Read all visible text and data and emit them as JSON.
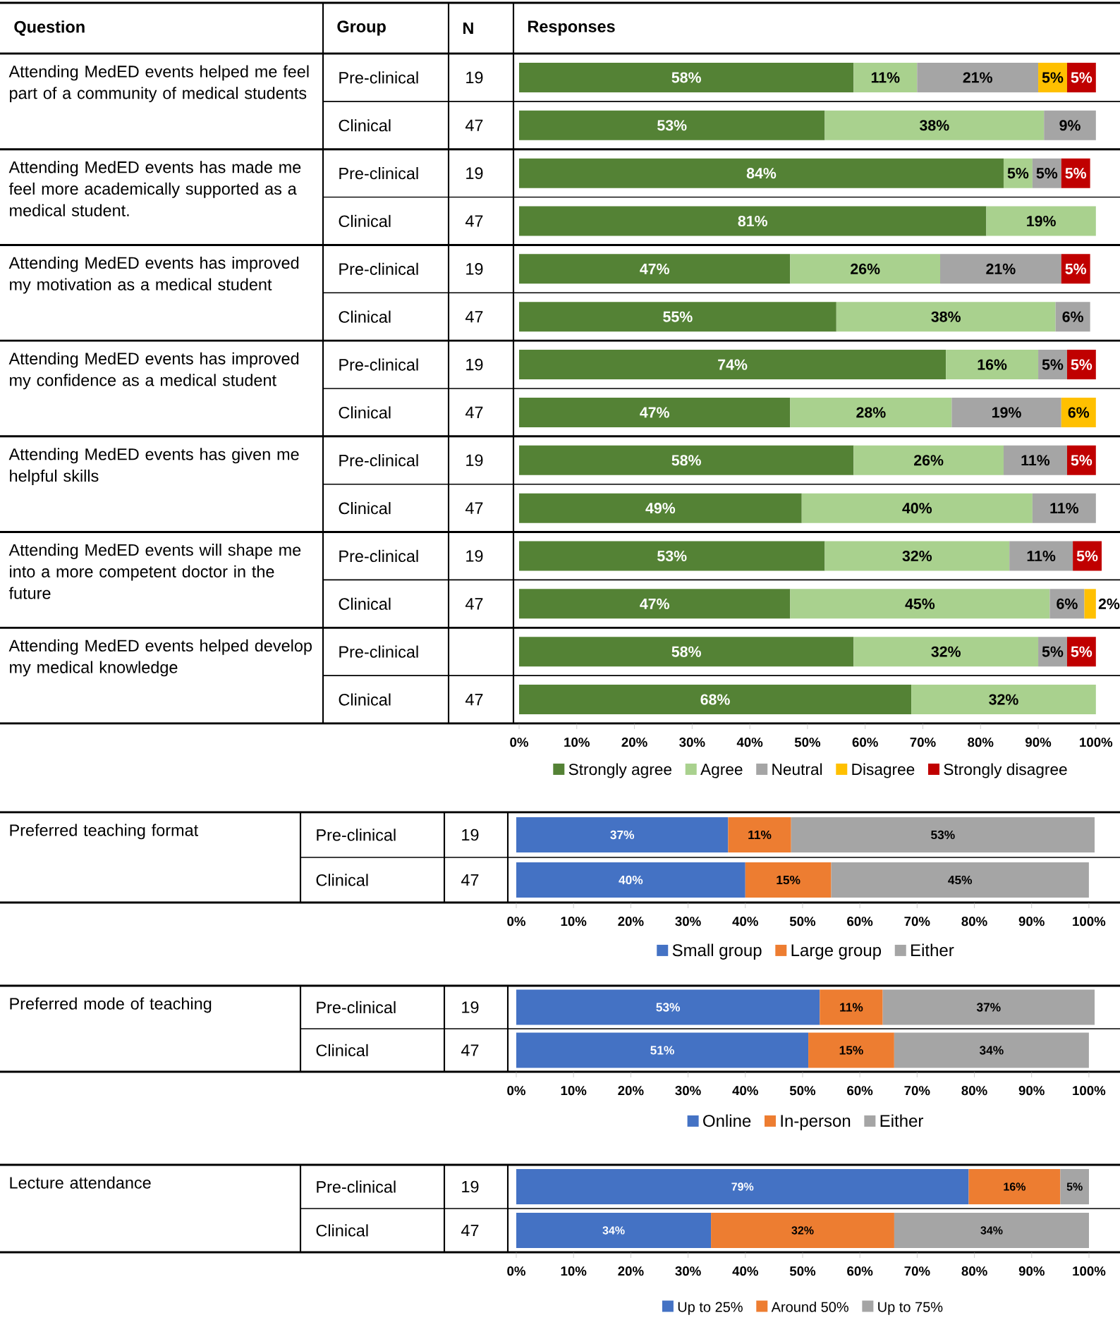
{
  "chart_data": [
    {
      "type": "bar",
      "orientation": "horizontal",
      "stacked": true,
      "legend": "bottom",
      "xlim": [
        0,
        101
      ],
      "xticks": [
        {
          "value": 0,
          "label": "0%"
        },
        {
          "value": 10,
          "label": "10%"
        },
        {
          "value": 20,
          "label": "20%"
        },
        {
          "value": 30,
          "label": "30%"
        },
        {
          "value": 40,
          "label": "40%"
        },
        {
          "value": 50,
          "label": "50%"
        },
        {
          "value": 60,
          "label": "60%"
        },
        {
          "value": 70,
          "label": "70%"
        },
        {
          "value": 80,
          "label": "80%"
        },
        {
          "value": 90,
          "label": "90%"
        },
        {
          "value": 100,
          "label": "100%"
        }
      ],
      "categories": [
        "Pre-clinical",
        "Clinical",
        "Pre-clinical",
        "Clinical",
        "Pre-clinical",
        "Clinical",
        "Pre-clinical",
        "Clinical",
        "Pre-clinical",
        "Clinical",
        "Pre-clinical",
        "Clinical",
        "Pre-clinical",
        "Clinical"
      ],
      "annotations": [
        "Question",
        "Group",
        "N",
        "Responses",
        "Attending MedED events helped me feel part of a community of medical students",
        "Attending MedED events has made me feel more academically supported as a medical student.",
        "Attending MedED events has improved my motivation as a medical student",
        "Attending MedED events has improved my confidence as a medical student",
        "Attending MedED events has given me helpful skills",
        "Attending MedED events will shape me into a more competent doctor in the future",
        "Attending MedED events helped develop my medical knowledge",
        "19",
        "47",
        "19",
        "47",
        "19",
        "47",
        "19",
        "47",
        "19",
        "47",
        "19",
        "47",
        null,
        "47"
      ],
      "series": [
        {
          "name": "Strongly agree",
          "color": "#548235",
          "values": [
            58,
            53,
            84,
            81,
            47,
            55,
            74,
            47,
            58,
            49,
            53,
            47,
            58,
            68
          ],
          "value_labels": [
            "58%",
            "53%",
            "84%",
            "81%",
            "47%",
            "55%",
            "74%",
            "47%",
            "58%",
            "49%",
            "53%",
            "47%",
            "58%",
            "68%"
          ]
        },
        {
          "name": "Agree",
          "color": "#a9d18e",
          "values": [
            11,
            38,
            5,
            19,
            26,
            38,
            16,
            28,
            26,
            40,
            32,
            45,
            32,
            32
          ],
          "value_labels": [
            "11%",
            "38%",
            "5%",
            "19%",
            "26%",
            "38%",
            "16%",
            "28%",
            "26%",
            "40%",
            "32%",
            "45%",
            "32%",
            "32%"
          ]
        },
        {
          "name": "Neutral",
          "color": "#a5a5a5",
          "values": [
            21,
            9,
            5,
            null,
            21,
            6,
            5,
            19,
            11,
            11,
            11,
            6,
            5,
            null
          ],
          "value_labels": [
            "21%",
            "9%",
            "5%",
            null,
            "21%",
            "6%",
            "5%",
            "19%",
            "11%",
            "11%",
            "11%",
            "6%",
            "5%",
            null
          ]
        },
        {
          "name": "Disagree",
          "color": "#ffc000",
          "values": [
            5,
            null,
            null,
            null,
            null,
            null,
            null,
            6,
            null,
            null,
            null,
            2,
            null,
            null
          ],
          "value_labels": [
            "5%",
            null,
            null,
            null,
            null,
            null,
            null,
            "6%",
            null,
            null,
            null,
            "2%",
            null,
            null
          ]
        },
        {
          "name": "Strongly disagree",
          "color": "#c00000",
          "values": [
            5,
            null,
            5,
            null,
            5,
            null,
            5,
            null,
            5,
            null,
            5,
            null,
            5,
            null
          ],
          "value_labels": [
            "5%",
            null,
            "5%",
            null,
            "5%",
            null,
            "5%",
            null,
            "5%",
            null,
            "5%",
            null,
            "5%",
            null
          ]
        }
      ]
    },
    {
      "type": "bar",
      "orientation": "horizontal",
      "stacked": true,
      "legend": "bottom",
      "xlim": [
        0,
        101
      ],
      "xticks": [
        {
          "value": 0,
          "label": "0%"
        },
        {
          "value": 10,
          "label": "10%"
        },
        {
          "value": 20,
          "label": "20%"
        },
        {
          "value": 30,
          "label": "30%"
        },
        {
          "value": 40,
          "label": "40%"
        },
        {
          "value": 50,
          "label": "50%"
        },
        {
          "value": 60,
          "label": "60%"
        },
        {
          "value": 70,
          "label": "70%"
        },
        {
          "value": 80,
          "label": "80%"
        },
        {
          "value": 90,
          "label": "90%"
        },
        {
          "value": 100,
          "label": "100%"
        }
      ],
      "categories": [
        "Pre-clinical",
        "Clinical"
      ],
      "annotations": [
        "Preferred teaching format",
        "19",
        "47"
      ],
      "series": [
        {
          "name": "Small group",
          "color": "#4472c4",
          "values": [
            37,
            40
          ],
          "value_labels": [
            "37%",
            "40%"
          ]
        },
        {
          "name": "Large group",
          "color": "#ed7d31",
          "values": [
            11,
            15
          ],
          "value_labels": [
            "11%",
            "15%"
          ]
        },
        {
          "name": "Either",
          "color": "#a5a5a5",
          "values": [
            53,
            45
          ],
          "value_labels": [
            "53%",
            "45%"
          ]
        }
      ]
    },
    {
      "type": "bar",
      "orientation": "horizontal",
      "stacked": true,
      "legend": "bottom",
      "xlim": [
        0,
        101
      ],
      "xticks": [
        {
          "value": 0,
          "label": "0%"
        },
        {
          "value": 10,
          "label": "10%"
        },
        {
          "value": 20,
          "label": "20%"
        },
        {
          "value": 30,
          "label": "30%"
        },
        {
          "value": 40,
          "label": "40%"
        },
        {
          "value": 50,
          "label": "50%"
        },
        {
          "value": 60,
          "label": "60%"
        },
        {
          "value": 70,
          "label": "70%"
        },
        {
          "value": 80,
          "label": "80%"
        },
        {
          "value": 90,
          "label": "90%"
        },
        {
          "value": 100,
          "label": "100%"
        }
      ],
      "categories": [
        "Pre-clinical",
        "Clinical"
      ],
      "annotations": [
        "Preferred mode of teaching",
        "19",
        "47"
      ],
      "series": [
        {
          "name": "Online",
          "color": "#4472c4",
          "values": [
            53,
            51
          ],
          "value_labels": [
            "53%",
            "51%"
          ]
        },
        {
          "name": "In-person",
          "color": "#ed7d31",
          "values": [
            11,
            15
          ],
          "value_labels": [
            "11%",
            "15%"
          ]
        },
        {
          "name": "Either",
          "color": "#a5a5a5",
          "values": [
            37,
            34
          ],
          "value_labels": [
            "37%",
            "34%"
          ]
        }
      ]
    },
    {
      "type": "bar",
      "orientation": "horizontal",
      "stacked": true,
      "legend": "bottom",
      "xlim": [
        0,
        100
      ],
      "xticks": [
        {
          "value": 0,
          "label": "0%"
        },
        {
          "value": 10,
          "label": "10%"
        },
        {
          "value": 20,
          "label": "20%"
        },
        {
          "value": 30,
          "label": "30%"
        },
        {
          "value": 40,
          "label": "40%"
        },
        {
          "value": 50,
          "label": "50%"
        },
        {
          "value": 60,
          "label": "60%"
        },
        {
          "value": 70,
          "label": "70%"
        },
        {
          "value": 80,
          "label": "80%"
        },
        {
          "value": 90,
          "label": "90%"
        },
        {
          "value": 100,
          "label": "100%"
        }
      ],
      "categories": [
        "Pre-clinical",
        "Clinical"
      ],
      "annotations": [
        "Lecture attendance",
        "19",
        "47"
      ],
      "series": [
        {
          "name": "Up to 25%",
          "color": "#4472c4",
          "values": [
            79,
            34
          ],
          "value_labels": [
            "79%",
            "34%"
          ]
        },
        {
          "name": "Around 50%",
          "color": "#ed7d31",
          "values": [
            16,
            32
          ],
          "value_labels": [
            "16%",
            "32%"
          ]
        },
        {
          "name": "Up to 75%",
          "color": "#a5a5a5",
          "values": [
            5,
            34
          ],
          "value_labels": [
            "5%",
            "34%"
          ]
        }
      ]
    }
  ]
}
